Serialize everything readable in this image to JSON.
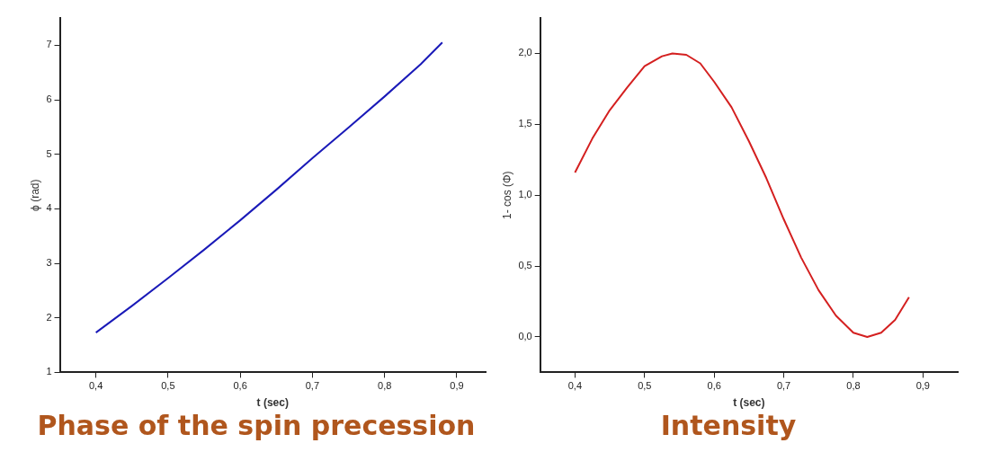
{
  "chart_data": [
    {
      "type": "line",
      "title": "Phase of the spin precession",
      "xlabel": "t (sec)",
      "ylabel": "ϕ (rad)",
      "marker": "none",
      "grid": false,
      "x": [
        0.4,
        0.45,
        0.5,
        0.55,
        0.6,
        0.65,
        0.7,
        0.75,
        0.8,
        0.85,
        0.88
      ],
      "series": [
        {
          "color": "#1a1ab8",
          "values": [
            1.73,
            2.22,
            2.73,
            3.25,
            3.79,
            4.35,
            4.93,
            5.49,
            6.06,
            6.65,
            7.05
          ]
        }
      ],
      "xlim": [
        0.35,
        0.94
      ],
      "xticks": [
        {
          "value": 0.4,
          "label": "0,4"
        },
        {
          "value": 0.5,
          "label": "0,5"
        },
        {
          "value": 0.6,
          "label": "0,6"
        },
        {
          "value": 0.7,
          "label": "0,7"
        },
        {
          "value": 0.8,
          "label": "0,8"
        },
        {
          "value": 0.9,
          "label": "0,9"
        }
      ],
      "ylim": [
        1,
        7.5
      ],
      "yticks": [
        1,
        2,
        3,
        4,
        5,
        6,
        7
      ]
    },
    {
      "type": "line",
      "title": "Intensity",
      "xlabel": "t (sec)",
      "ylabel": "1- cos (Φ)",
      "marker": "none",
      "grid": false,
      "x": [
        0.4,
        0.425,
        0.45,
        0.475,
        0.5,
        0.525,
        0.54,
        0.56,
        0.58,
        0.6,
        0.625,
        0.65,
        0.675,
        0.7,
        0.725,
        0.75,
        0.775,
        0.8,
        0.82,
        0.84,
        0.86,
        0.88
      ],
      "series": [
        {
          "color": "#d42020",
          "values": [
            1.16,
            1.4,
            1.6,
            1.76,
            1.91,
            1.98,
            2.0,
            1.99,
            1.93,
            1.8,
            1.62,
            1.38,
            1.12,
            0.83,
            0.56,
            0.33,
            0.15,
            0.03,
            0.0,
            0.03,
            0.12,
            0.28
          ]
        }
      ],
      "xlim": [
        0.35,
        0.95
      ],
      "xticks": [
        {
          "value": 0.4,
          "label": "0,4"
        },
        {
          "value": 0.5,
          "label": "0,5"
        },
        {
          "value": 0.6,
          "label": "0,6"
        },
        {
          "value": 0.7,
          "label": "0,7"
        },
        {
          "value": 0.8,
          "label": "0,8"
        },
        {
          "value": 0.9,
          "label": "0,9"
        }
      ],
      "ylim": [
        -0.25,
        2.25
      ],
      "yticks": [
        {
          "value": 0,
          "label": "0,0"
        },
        {
          "value": 0.5,
          "label": "0,5"
        },
        {
          "value": 1,
          "label": "1,0"
        },
        {
          "value": 1.5,
          "label": "1,5"
        },
        {
          "value": 2,
          "label": "2,0"
        }
      ]
    }
  ]
}
